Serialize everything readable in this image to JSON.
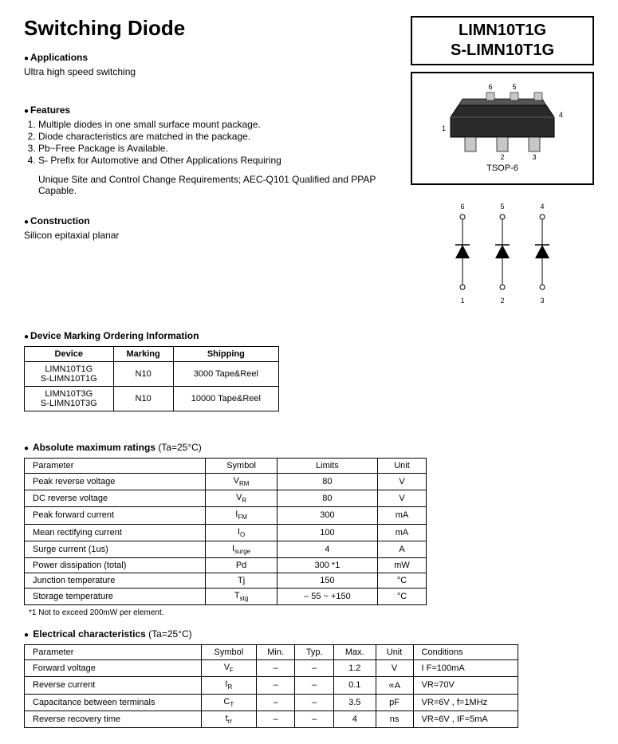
{
  "title": "Switching Diode",
  "part_numbers": [
    "LIMN10T1G",
    "S-LIMN10T1G"
  ],
  "package_label": "TSOP-6",
  "applications": {
    "heading": "Applications",
    "text": "Ultra high speed switching"
  },
  "features": {
    "heading": "Features",
    "items": [
      "Multiple diodes in one small surface mount package.",
      "Diode characteristics are matched in the package.",
      "Pb−Free Package is Available.",
      "S- Prefix for Automotive and Other Applications Requiring"
    ],
    "extra": "Unique Site and Control Change Requirements; AEC-Q101 Qualified and PPAP Capable."
  },
  "construction": {
    "heading": "Construction",
    "text": "Silicon epitaxial planar"
  },
  "ordering": {
    "heading": "Device Marking Ordering Information",
    "columns": [
      "Device",
      "Marking",
      "Shipping"
    ],
    "rows": [
      {
        "device": "LIMN10T1G\nS-LIMN10T1G",
        "marking": "N10",
        "shipping": "3000 Tape&Reel"
      },
      {
        "device": "LIMN10T3G\nS-LIMN10T3G",
        "marking": "N10",
        "shipping": "10000 Tape&Reel"
      }
    ]
  },
  "abs_max": {
    "heading": "Absolute maximum ratings",
    "condition": "(Ta=25°C)",
    "columns": [
      "Parameter",
      "Symbol",
      "Limits",
      "Unit"
    ],
    "rows": [
      {
        "p": "Peak reverse voltage",
        "s": "V",
        "sub": "RM",
        "l": "80",
        "u": "V"
      },
      {
        "p": "DC reverse voltage",
        "s": "V",
        "sub": "R",
        "l": "80",
        "u": "V"
      },
      {
        "p": "Peak forward current",
        "s": "I",
        "sub": "FM",
        "l": "300",
        "u": "mA"
      },
      {
        "p": "Mean rectifying current",
        "s": "I",
        "sub": "O",
        "l": "100",
        "u": "mA"
      },
      {
        "p": "Surge current (1us)",
        "s": "I",
        "sub": "surge",
        "l": "4",
        "u": "A"
      },
      {
        "p": "Power dissipation (total)",
        "s": "Pd",
        "sub": "",
        "l": "300 *1",
        "u": "mW"
      },
      {
        "p": "Junction temperature",
        "s": "Tj",
        "sub": "",
        "l": "150",
        "u": "°C"
      },
      {
        "p": "Storage temperature",
        "s": "T",
        "sub": "stg",
        "l": "– 55 ~ +150",
        "u": "°C"
      }
    ],
    "footnote": "*1 Not to exceed 200mW per element."
  },
  "elec": {
    "heading": "Electrical characteristics",
    "condition": "(Ta=25°C)",
    "columns": [
      "Parameter",
      "Symbol",
      "Min.",
      "Typ.",
      "Max.",
      "Unit",
      "Conditions"
    ],
    "rows": [
      {
        "p": "Forward voltage",
        "s": "V",
        "sub": "F",
        "min": "–",
        "typ": "–",
        "max": "1.2",
        "u": "V",
        "c": "I F=100mA"
      },
      {
        "p": "Reverse current",
        "s": "I",
        "sub": "R",
        "min": "–",
        "typ": "–",
        "max": "0.1",
        "u": "∝A",
        "c": "VR=70V"
      },
      {
        "p": "Capacitance between terminals",
        "s": "C",
        "sub": "T",
        "min": "–",
        "typ": "–",
        "max": "3.5",
        "u": "pF",
        "c": "VR=6V , f=1MHz"
      },
      {
        "p": "Reverse recovery time",
        "s": "t",
        "sub": "rr",
        "min": "–",
        "typ": "–",
        "max": "4",
        "u": "ns",
        "c": "VR=6V , IF=5mA"
      }
    ]
  },
  "pkg_svg": {
    "pins_top": [
      "6",
      "5",
      "4"
    ],
    "pins_bot": [
      "1",
      "2",
      "3"
    ],
    "body_color": "#2a2a2a",
    "lead_color": "#c8c8c8"
  },
  "schematic": {
    "top_labels": [
      "6",
      "5",
      "4"
    ],
    "bot_labels": [
      "1",
      "2",
      "3"
    ]
  }
}
